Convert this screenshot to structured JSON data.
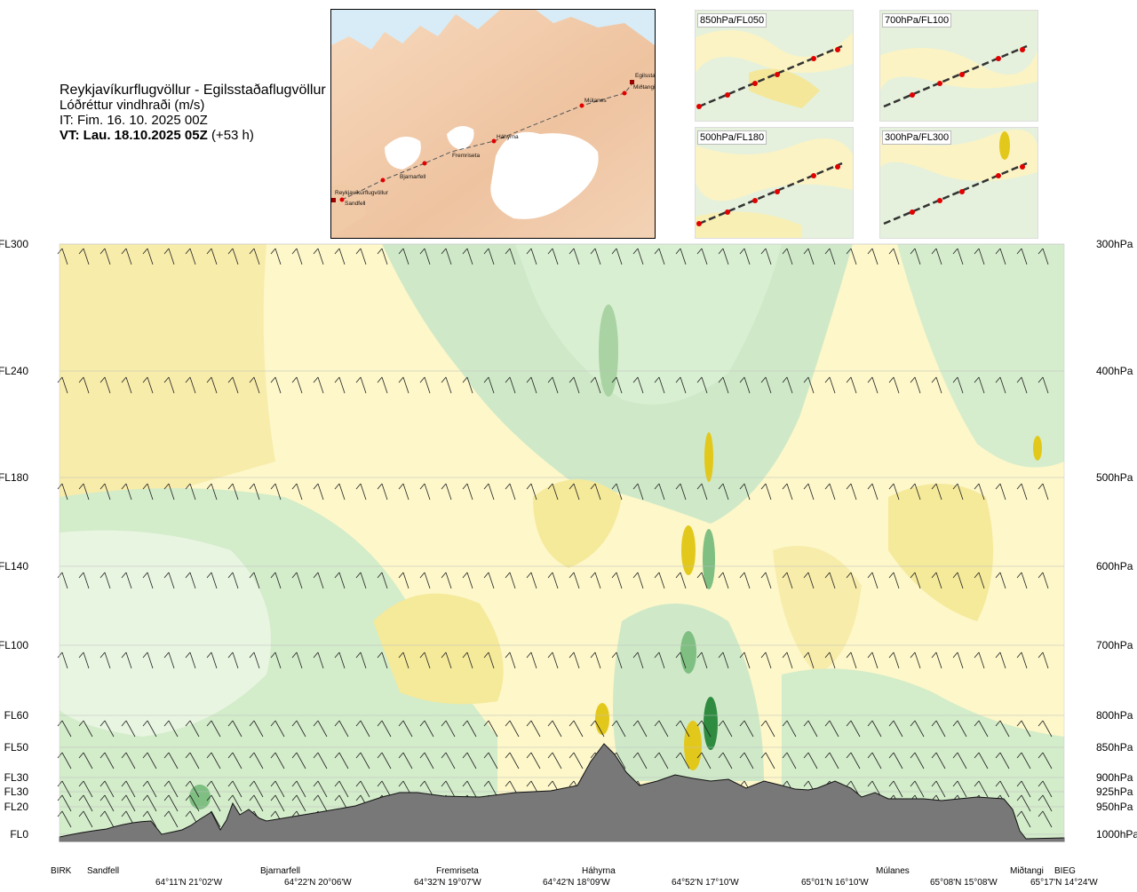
{
  "header": {
    "route": "Reykjavíkurflugvöllur - Egilsstaðaflugvöllur",
    "subtitle": "Lóðréttur vindhraði (m/s)",
    "issue_time": "IT: Fim. 16. 10. 2025 00Z",
    "valid_prefix": "VT: Lau. 18.10.2025 05Z",
    "valid_lead": "(+53 h)"
  },
  "map": {
    "stations": [
      "Egilsstaðir",
      "Miðtangi",
      "Múlanes",
      "Háhyrna",
      "Fremriseta",
      "Bjarnarfell",
      "Reykjavíkurflugvöllur",
      "Sandfell"
    ]
  },
  "thumbnails": [
    {
      "label": "850hPa/FL050"
    },
    {
      "label": "700hPa/FL100"
    },
    {
      "label": "500hPa/FL180"
    },
    {
      "label": "300hPa/FL300"
    }
  ],
  "chart_data": {
    "type": "heatmap",
    "variable": "vertical wind speed (m/s)",
    "levels": [
      {
        "fl": "FL300",
        "hpa": "300hPa"
      },
      {
        "fl": "FL240",
        "hpa": "400hPa"
      },
      {
        "fl": "FL180",
        "hpa": "500hPa"
      },
      {
        "fl": "FL140",
        "hpa": "600hPa"
      },
      {
        "fl": "FL100",
        "hpa": "700hPa"
      },
      {
        "fl": "FL60",
        "hpa": "800hPa"
      },
      {
        "fl": "FL50",
        "hpa": "850hPa"
      },
      {
        "fl": "FL30",
        "hpa": "900hPa"
      },
      {
        "fl": "FL30",
        "hpa": "925hPa"
      },
      {
        "fl": "FL20",
        "hpa": "950hPa"
      },
      {
        "fl": "FL0",
        "hpa": "1000hPa"
      }
    ],
    "x_waypoints": [
      "BIRK",
      "Sandfell",
      "Bjarnarfell",
      "Fremriseta",
      "Háhyrna",
      "Miðtangi",
      "Múlanes",
      "BIEG"
    ],
    "x_coordinates": [
      "64°11'N 21°02'W",
      "64°22'N 20°06'W",
      "64°32'N 19°07'W",
      "64°42'N 18°09'W",
      "64°52'N 17°10'W",
      "65°01'N 16°10'W",
      "65°08'N 15°08'W",
      "65°17'N 14°24'W"
    ],
    "colors": {
      "strong_up": "#2e8b40",
      "up": "#7fbf82",
      "weak_up": "#cfe9c8",
      "near_zero": "#f4fbe8",
      "weak_down": "#fdf7c9",
      "down": "#f5e99a",
      "strong_down": "#e3c81c",
      "terrain": "#7a7a7a"
    }
  }
}
